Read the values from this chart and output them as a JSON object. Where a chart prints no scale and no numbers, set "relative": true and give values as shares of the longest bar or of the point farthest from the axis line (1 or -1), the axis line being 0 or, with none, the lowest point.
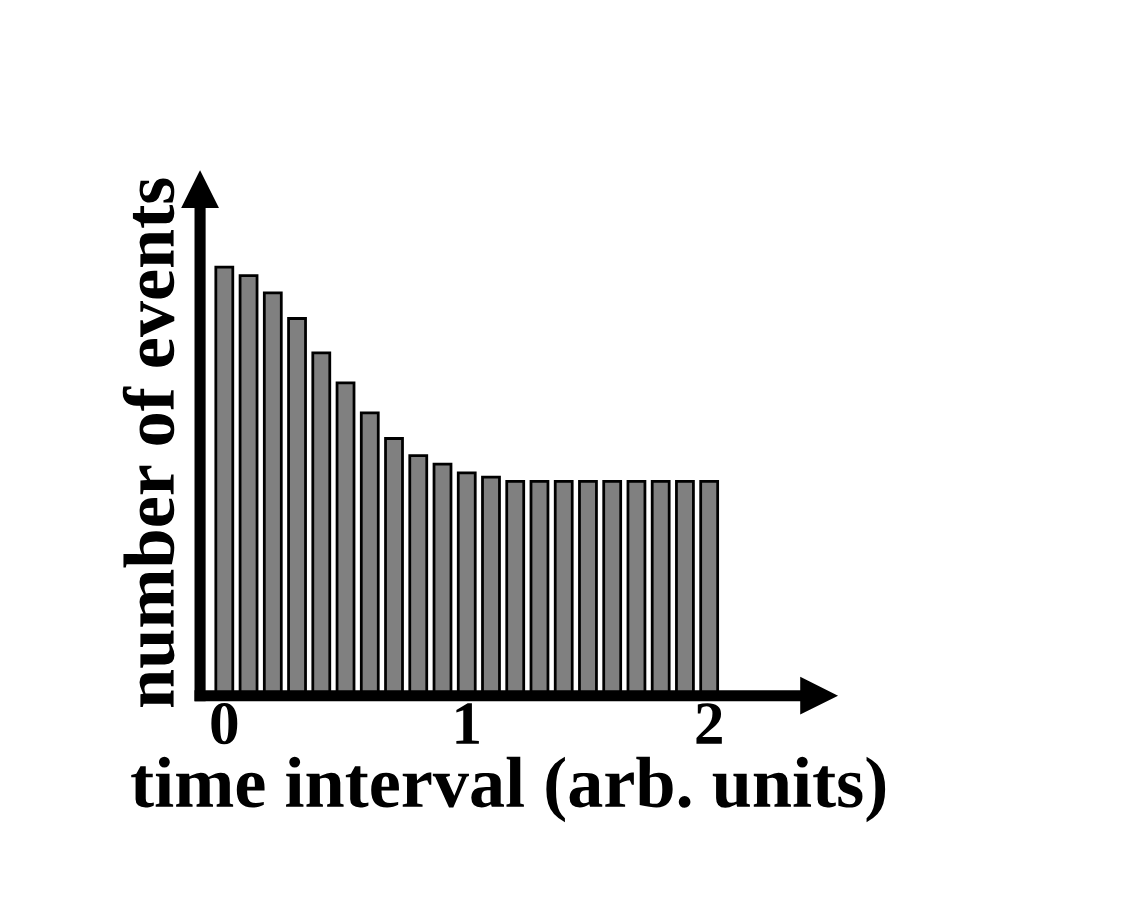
{
  "chart_data": {
    "type": "bar",
    "relative": true,
    "xlabel": "time interval (arb. units)",
    "ylabel": "number of events",
    "x": [
      0,
      0.1,
      0.2,
      0.3,
      0.4,
      0.5,
      0.6,
      0.7,
      0.8,
      0.9,
      1,
      1.1,
      1.2,
      1.3,
      1.4,
      1.5,
      1.6,
      1.7,
      1.8,
      1.9,
      2
    ],
    "values": [
      1,
      0.98,
      0.94,
      0.88,
      0.8,
      0.73,
      0.66,
      0.6,
      0.56,
      0.54,
      0.52,
      0.51,
      0.5,
      0.5,
      0.5,
      0.5,
      0.5,
      0.5,
      0.5,
      0.5,
      0.5
    ],
    "color": "#808080",
    "xlim": [
      -0.1,
      2.45
    ],
    "xticks": [
      0,
      1,
      2
    ],
    "grid": false,
    "legend": false
  }
}
